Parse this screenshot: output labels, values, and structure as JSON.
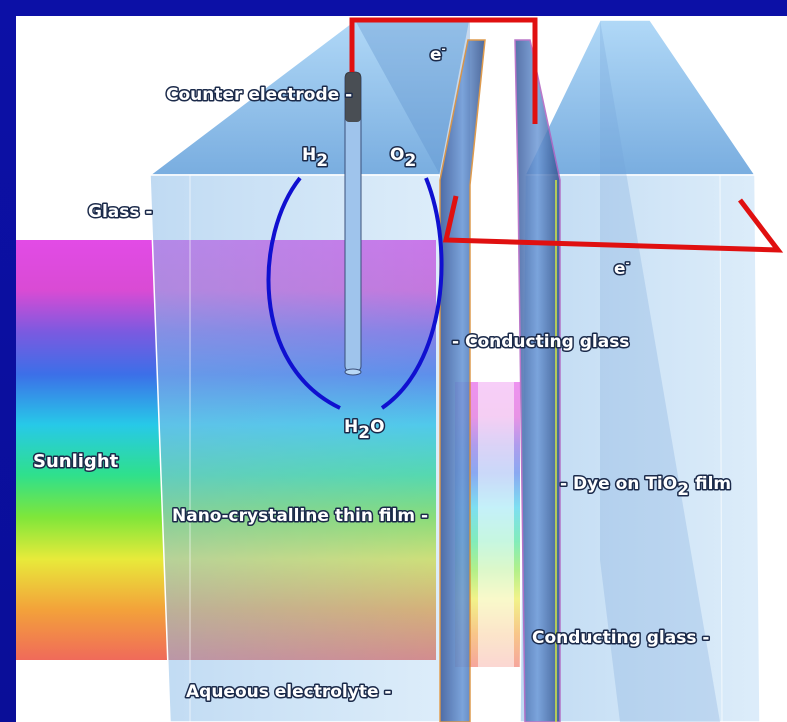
{
  "labels": {
    "counter_electrode": "Counter electrode -",
    "electron_top": "e",
    "electron_top_sup": "-",
    "h2": "H",
    "h2_sub": "2",
    "o2": "O",
    "o2_sub": "2",
    "glass": "Glass -",
    "electron_right": "e",
    "electron_right_sup": "-",
    "conducting_glass_mid": "- Conducting glass",
    "h2o": "H",
    "h2o_sub": "2",
    "h2o_tail": "O",
    "sunlight": "Sunlight",
    "dye_prefix": "- Dye on TiO",
    "dye_sub": "2",
    "dye_suffix": " film",
    "nano_film": "Nano-crystalline thin film -",
    "conducting_glass_low": "Conducting glass -",
    "aqueous_electrolyte": "Aqueous electrolyte -"
  },
  "colors": {
    "frame_blue": "#0a0f9e",
    "circuit_red": "#e01010",
    "arc_blue": "#1010d0",
    "glass_blue": "#7fb0e0"
  }
}
